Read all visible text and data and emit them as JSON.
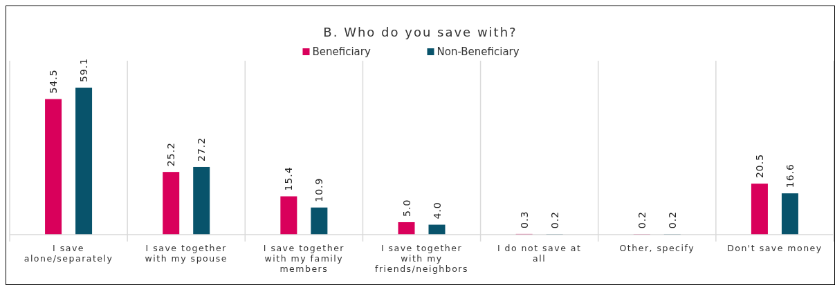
{
  "chart_data": {
    "type": "bar",
    "title": "B. Who do you save with?",
    "categories": [
      "I save alone/separately",
      "I save together with my spouse",
      "I save together with my family members",
      "I save together with my friends/neighbors",
      "I do not save at all",
      "Other, specify",
      "Don't save money"
    ],
    "series": [
      {
        "name": "Beneficiary",
        "color": "#d9005b",
        "values": [
          54.5,
          25.2,
          15.4,
          5.0,
          0.3,
          0.2,
          20.5
        ],
        "value_labels": [
          "54.5",
          "25.2",
          "15.4",
          "5.0",
          "0.3",
          "0.2",
          "20.5"
        ]
      },
      {
        "name": "Non-Beneficiary",
        "color": "#08536b",
        "values": [
          59.1,
          27.2,
          10.9,
          4.0,
          0.2,
          0.2,
          16.6
        ],
        "value_labels": [
          "59.1",
          "27.2",
          "10.9",
          "4.0",
          "0.2",
          "0.2",
          "16.6"
        ]
      }
    ],
    "grid": "x",
    "legend": "top"
  }
}
